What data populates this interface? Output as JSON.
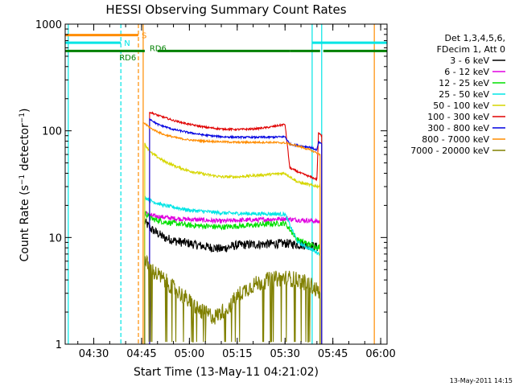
{
  "chart_data": {
    "type": "line",
    "title": "HESSI Observing Summary Count Rates",
    "xlabel": "Start Time (13-May-11 04:21:02)",
    "ylabel": "Count Rate (s⁻¹ detector⁻¹)",
    "y_scale": "log",
    "ylim": [
      1,
      1000
    ],
    "xlim": [
      "04:21:02",
      "06:02:00"
    ],
    "x_ticks": [
      "04:30",
      "04:45",
      "05:00",
      "05:15",
      "05:30",
      "05:45",
      "06:00"
    ],
    "y_ticks": [
      "1",
      "10",
      "100",
      "1000"
    ],
    "legend_header": [
      "Det 1,3,4,5,6,",
      "FDecim 1, Att 0"
    ],
    "legend_position": "right",
    "timestamp": "13-May-2011 14:15",
    "flags": [
      {
        "name": "S",
        "color": "#ff8c00",
        "segments": [
          [
            "04:21:02",
            "04:44:00"
          ]
        ],
        "level": 790
      },
      {
        "name": "N",
        "color": "#00e5e5",
        "segments": [
          [
            "04:21:02",
            "04:38:30"
          ],
          [
            "05:38:30",
            "06:02:00"
          ]
        ],
        "level": 670
      },
      {
        "name": "RD6",
        "color": "#008000",
        "segments": [
          [
            "04:21:02",
            "04:46:00"
          ],
          [
            "04:50:00",
            "05:31:30"
          ],
          [
            "05:31:30",
            "05:41:00"
          ],
          [
            "05:42:00",
            "06:02:00"
          ]
        ],
        "level": 560
      }
    ],
    "flag_labels": [
      {
        "text": "RD6",
        "color": "#008000",
        "time": "04:38:00",
        "level": 490
      },
      {
        "text": "RD6",
        "color": "#008000",
        "time": "04:47:30",
        "level": 600
      }
    ],
    "vlines": [
      {
        "time": "04:38:30",
        "color": "#00e5e5",
        "dash": true
      },
      {
        "time": "04:44:00",
        "color": "#ff8c00",
        "dash": true
      },
      {
        "time": "04:45:30",
        "color": "#ff8c00",
        "dash": false
      },
      {
        "time": "05:38:30",
        "color": "#00e5e5",
        "dash": false
      },
      {
        "time": "05:41:30",
        "color": "#00e5e5",
        "dash": false
      },
      {
        "time": "05:58:00",
        "color": "#ff8c00",
        "dash": false
      },
      {
        "time": "04:22:00",
        "color": "#00e5e5",
        "dash": false
      }
    ],
    "series": [
      {
        "name": "3 - 6 keV",
        "color": "#000000",
        "noise": 0.1,
        "points": [
          [
            "04:46:00",
            14
          ],
          [
            "04:48:00",
            12
          ],
          [
            "04:52:00",
            10
          ],
          [
            "04:56:00",
            9.2
          ],
          [
            "05:00:00",
            8.8
          ],
          [
            "05:05:00",
            8.2
          ],
          [
            "05:10:00",
            7.8
          ],
          [
            "05:15:00",
            8.5
          ],
          [
            "05:20:00",
            8.6
          ],
          [
            "05:25:00",
            8.7
          ],
          [
            "05:30:00",
            8.8
          ],
          [
            "05:34:00",
            8.6
          ],
          [
            "05:38:00",
            8.4
          ],
          [
            "05:41:00",
            8.0
          ]
        ]
      },
      {
        "name": "6 - 12 keV",
        "color": "#e000e0",
        "noise": 0.05,
        "points": [
          [
            "04:46:00",
            17
          ],
          [
            "04:48:00",
            16
          ],
          [
            "04:52:00",
            15.5
          ],
          [
            "04:56:00",
            15
          ],
          [
            "05:00:00",
            14.8
          ],
          [
            "05:05:00",
            14.5
          ],
          [
            "05:10:00",
            14.2
          ],
          [
            "05:15:00",
            14.5
          ],
          [
            "05:20:00",
            14.6
          ],
          [
            "05:25:00",
            14.8
          ],
          [
            "05:30:00",
            15.0
          ],
          [
            "05:34:00",
            14.6
          ],
          [
            "05:38:00",
            14.4
          ],
          [
            "05:41:00",
            14.0
          ]
        ]
      },
      {
        "name": "12 - 25 keV",
        "color": "#00e000",
        "noise": 0.06,
        "points": [
          [
            "04:46:00",
            17
          ],
          [
            "04:48:00",
            15
          ],
          [
            "04:52:00",
            14
          ],
          [
            "04:56:00",
            13.5
          ],
          [
            "05:00:00",
            13
          ],
          [
            "05:05:00",
            12.8
          ],
          [
            "05:10:00",
            12.5
          ],
          [
            "05:15:00",
            12.8
          ],
          [
            "05:20:00",
            13
          ],
          [
            "05:25:00",
            13.4
          ],
          [
            "05:30:00",
            13.6
          ],
          [
            "05:34:00",
            9.5
          ],
          [
            "05:38:00",
            8.5
          ],
          [
            "05:41:00",
            8.0
          ]
        ]
      },
      {
        "name": "25 - 50 keV",
        "color": "#00e5e5",
        "noise": 0.04,
        "points": [
          [
            "04:46:00",
            24
          ],
          [
            "04:48:00",
            22
          ],
          [
            "04:52:00",
            20
          ],
          [
            "04:56:00",
            19
          ],
          [
            "05:00:00",
            18
          ],
          [
            "05:05:00",
            17.5
          ],
          [
            "05:10:00",
            17
          ],
          [
            "05:15:00",
            16.8
          ],
          [
            "05:20:00",
            16.7
          ],
          [
            "05:25:00",
            16.7
          ],
          [
            "05:30:00",
            16.5
          ],
          [
            "05:34:00",
            9
          ],
          [
            "05:38:00",
            7.8
          ],
          [
            "05:41:00",
            7.0
          ]
        ]
      },
      {
        "name": "50 - 100 keV",
        "color": "#d6d600",
        "noise": 0.03,
        "points": [
          [
            "04:46:00",
            75
          ],
          [
            "04:48:00",
            62
          ],
          [
            "04:52:00",
            52
          ],
          [
            "04:56:00",
            46
          ],
          [
            "05:00:00",
            42
          ],
          [
            "05:05:00",
            39
          ],
          [
            "05:10:00",
            37
          ],
          [
            "05:15:00",
            37
          ],
          [
            "05:20:00",
            38
          ],
          [
            "05:25:00",
            39
          ],
          [
            "05:30:00",
            40
          ],
          [
            "05:34:00",
            33
          ],
          [
            "05:38:00",
            31
          ],
          [
            "05:41:00",
            30
          ]
        ]
      },
      {
        "name": "100 - 300 keV",
        "color": "#e00000",
        "noise": 0.02,
        "points": [
          [
            "04:47:30",
            150
          ],
          [
            "04:50:00",
            140
          ],
          [
            "04:55:00",
            125
          ],
          [
            "05:00:00",
            115
          ],
          [
            "05:05:00",
            108
          ],
          [
            "05:10:00",
            104
          ],
          [
            "05:15:00",
            103
          ],
          [
            "05:20:00",
            104
          ],
          [
            "05:25:00",
            108
          ],
          [
            "05:30:00",
            115
          ],
          [
            "05:31:30",
            45
          ],
          [
            "05:35:00",
            40
          ],
          [
            "05:38:00",
            37
          ],
          [
            "05:40:00",
            35
          ],
          [
            "05:40:30",
            95
          ],
          [
            "05:41:30",
            90
          ]
        ]
      },
      {
        "name": "300 - 800 keV",
        "color": "#0000e0",
        "noise": 0.02,
        "points": [
          [
            "04:47:30",
            130
          ],
          [
            "04:50:00",
            115
          ],
          [
            "04:55:00",
            103
          ],
          [
            "05:00:00",
            96
          ],
          [
            "05:05:00",
            91
          ],
          [
            "05:10:00",
            88
          ],
          [
            "05:15:00",
            87
          ],
          [
            "05:20:00",
            87
          ],
          [
            "05:25:00",
            87
          ],
          [
            "05:30:00",
            88
          ],
          [
            "05:31:30",
            75
          ],
          [
            "05:35:00",
            72
          ],
          [
            "05:38:00",
            70
          ],
          [
            "05:40:00",
            66
          ],
          [
            "05:40:30",
            78
          ],
          [
            "05:41:30",
            75
          ]
        ]
      },
      {
        "name": "800 - 7000 keV",
        "color": "#ff8c00",
        "noise": 0.02,
        "points": [
          [
            "04:45:30",
            120
          ],
          [
            "04:48:00",
            105
          ],
          [
            "04:52:00",
            92
          ],
          [
            "04:56:00",
            86
          ],
          [
            "05:00:00",
            82
          ],
          [
            "05:05:00",
            80
          ],
          [
            "05:10:00",
            79
          ],
          [
            "05:15:00",
            78
          ],
          [
            "05:20:00",
            78
          ],
          [
            "05:25:00",
            78
          ],
          [
            "05:30:00",
            77
          ],
          [
            "05:34:00",
            72
          ],
          [
            "05:38:00",
            66
          ],
          [
            "05:41:00",
            60
          ]
        ]
      },
      {
        "name": "7000 - 20000 keV",
        "color": "#808000",
        "noise": 0.18,
        "points": [
          [
            "04:46:00",
            6
          ],
          [
            "04:48:00",
            5
          ],
          [
            "04:52:00",
            4
          ],
          [
            "04:56:00",
            3.2
          ],
          [
            "05:00:00",
            2.5
          ],
          [
            "05:04:00",
            2.0
          ],
          [
            "05:08:00",
            1.8
          ],
          [
            "05:12:00",
            2.2
          ],
          [
            "05:16:00",
            3.0
          ],
          [
            "05:20:00",
            3.6
          ],
          [
            "05:25:00",
            4.0
          ],
          [
            "05:30:00",
            4.2
          ],
          [
            "05:34:00",
            4.0
          ],
          [
            "05:38:00",
            3.6
          ],
          [
            "05:41:00",
            3.0
          ]
        ]
      }
    ]
  }
}
